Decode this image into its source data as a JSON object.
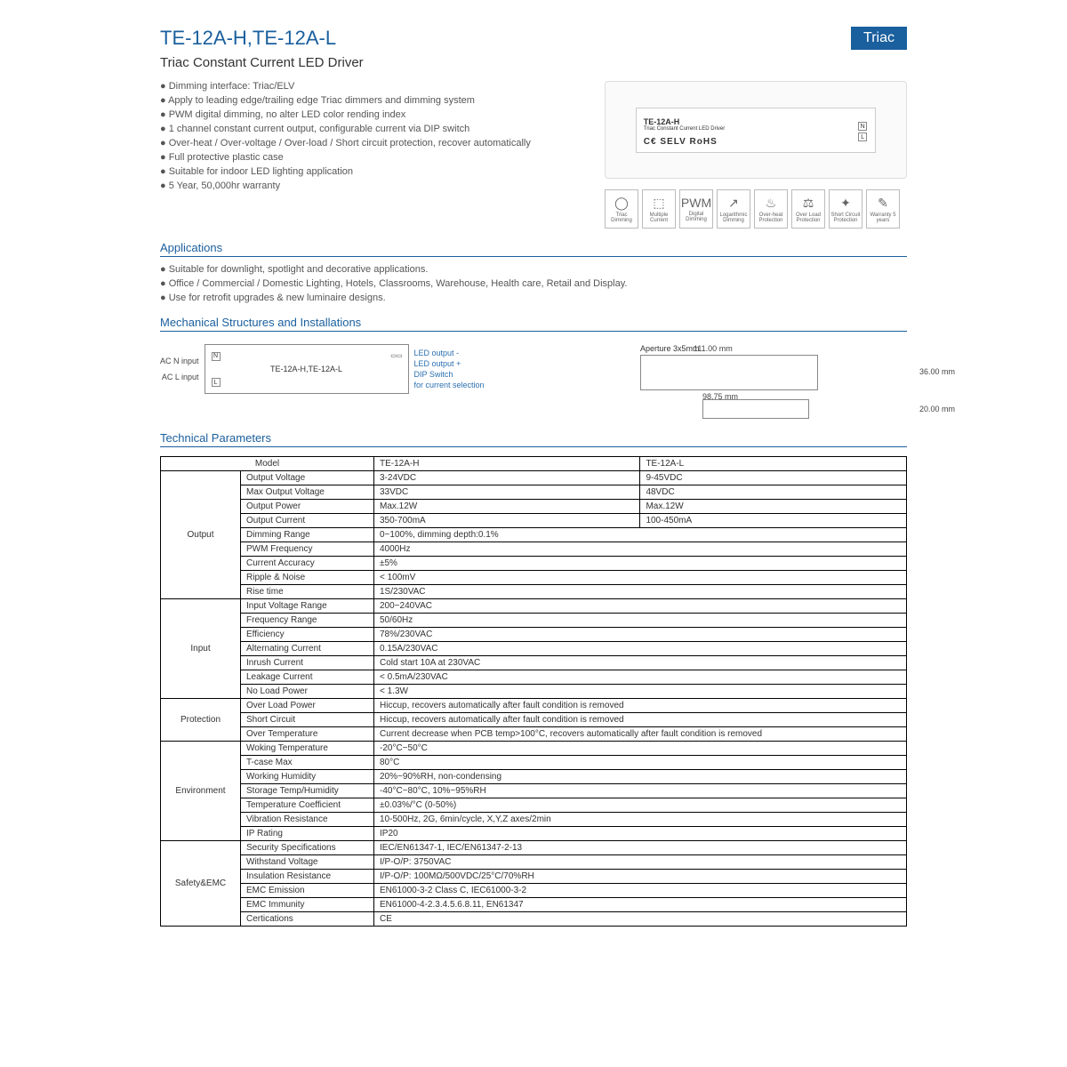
{
  "header": {
    "title": "TE-12A-H,TE-12A-L",
    "badge": "Triac"
  },
  "subtitle": "Triac Constant Current LED Driver",
  "features": [
    "Dimming interface: Triac/ELV",
    "Apply to leading edge/trailing edge Triac dimmers and dimming system",
    "PWM digital dimming, no alter LED color rending index",
    "1 channel constant current output, configurable current via DIP switch",
    "Over-heat / Over-voltage / Over-load / Short circuit protection, recover automatically",
    "Full protective plastic case",
    "Suitable for indoor LED lighting application",
    "5 Year, 50,000hr warranty"
  ],
  "product": {
    "model": "TE-12A-H",
    "sub": "Triac Constant Current LED Driver",
    "cert": "C€  SELV RoHS"
  },
  "icons": [
    {
      "g": "◯",
      "t": "Triac Dimming"
    },
    {
      "g": "⬚",
      "t": "Multiple Current"
    },
    {
      "g": "PWM",
      "t": "Digital Dimming"
    },
    {
      "g": "↗",
      "t": "Logarithmic Dimming"
    },
    {
      "g": "♨",
      "t": "Over-heat Protection"
    },
    {
      "g": "⚖",
      "t": "Over Load Protection"
    },
    {
      "g": "✦",
      "t": "Short Circuit Protection"
    },
    {
      "g": "✎",
      "t": "Warranty 5 years"
    }
  ],
  "sections": {
    "apps": "Applications",
    "mech": "Mechanical Structures and Installations",
    "tech": "Technical Parameters"
  },
  "applications": [
    "Suitable for downlight, spotlight and decorative applications.",
    "Office / Commercial / Domestic Lighting, Hotels, Classrooms, Warehouse, Health care, Retail and Display.",
    "Use for retrofit upgrades & new luminaire designs."
  ],
  "mech": {
    "left_labels": [
      "AC N input",
      "AC L input"
    ],
    "center": "TE-12A-H,TE-12A-L",
    "right_labels": [
      "LED output -",
      "LED output +",
      "DIP Switch",
      "for current selection"
    ],
    "aperture": "Aperture 3x5mm",
    "dims": {
      "w": "111.00 mm",
      "h": "36.00 mm",
      "w2": "98.75 mm",
      "d": "20.00 mm"
    }
  },
  "table": {
    "header": [
      "Model",
      "TE-12A-H",
      "TE-12A-L"
    ],
    "groups": [
      {
        "name": "Output",
        "rows": [
          [
            "Output Voltage",
            "3-24VDC",
            "9-45VDC"
          ],
          [
            "Max Output Voltage",
            "33VDC",
            "48VDC"
          ],
          [
            "Output Power",
            "Max.12W",
            "Max.12W"
          ],
          [
            "Output Current",
            "350-700mA",
            "100-450mA"
          ],
          [
            "Dimming Range",
            "0~100%, dimming depth:0.1%",
            ""
          ],
          [
            "PWM Frequency",
            "4000Hz",
            ""
          ],
          [
            "Current Accuracy",
            "±5%",
            ""
          ],
          [
            "Ripple & Noise",
            "< 100mV",
            ""
          ],
          [
            "Rise time",
            "1S/230VAC",
            ""
          ]
        ]
      },
      {
        "name": "Input",
        "rows": [
          [
            "Input Voltage Range",
            "200~240VAC",
            ""
          ],
          [
            "Frequency Range",
            "50/60Hz",
            ""
          ],
          [
            "Efficiency",
            "78%/230VAC",
            ""
          ],
          [
            "Alternating Current",
            "0.15A/230VAC",
            ""
          ],
          [
            "Inrush Current",
            "Cold start 10A at 230VAC",
            ""
          ],
          [
            "Leakage Current",
            "< 0.5mA/230VAC",
            ""
          ],
          [
            "No Load Power",
            "< 1.3W",
            ""
          ]
        ]
      },
      {
        "name": "Protection",
        "rows": [
          [
            "Over Load Power",
            "Hiccup, recovers automatically after fault condition is removed",
            ""
          ],
          [
            "Short Circuit",
            "Hiccup, recovers automatically after fault condition is removed",
            ""
          ],
          [
            "Over Temperature",
            "Current decrease when PCB temp>100°C, recovers automatically after fault condition is removed",
            ""
          ]
        ]
      },
      {
        "name": "Environment",
        "rows": [
          [
            "Woking Temperature",
            "-20°C~50°C",
            ""
          ],
          [
            "T-case Max",
            "80°C",
            ""
          ],
          [
            "Working Humidity",
            "20%~90%RH, non-condensing",
            ""
          ],
          [
            "Storage Temp/Humidity",
            "-40°C~80°C, 10%~95%RH",
            ""
          ],
          [
            "Temperature Coefficient",
            "±0.03%/°C (0-50%)",
            ""
          ],
          [
            "Vibration Resistance",
            "10-500Hz, 2G, 6min/cycle,  X,Y,Z axes/2min",
            ""
          ],
          [
            "IP Rating",
            "IP20",
            ""
          ]
        ]
      },
      {
        "name": "Safety&EMC",
        "rows": [
          [
            "Security Specifications",
            "IEC/EN61347-1, IEC/EN61347-2-13",
            ""
          ],
          [
            "Withstand Voltage",
            "I/P-O/P: 3750VAC",
            ""
          ],
          [
            "Insulation Resistance",
            "I/P-O/P: 100MΩ/500VDC/25°C/70%RH",
            ""
          ],
          [
            "EMC Emission",
            "EN61000-3-2 Class C, IEC61000-3-2",
            ""
          ],
          [
            "EMC Immunity",
            "EN61000-4-2.3.4.5.6.8.11, EN61347",
            ""
          ],
          [
            "Certications",
            "CE",
            ""
          ]
        ]
      }
    ]
  }
}
